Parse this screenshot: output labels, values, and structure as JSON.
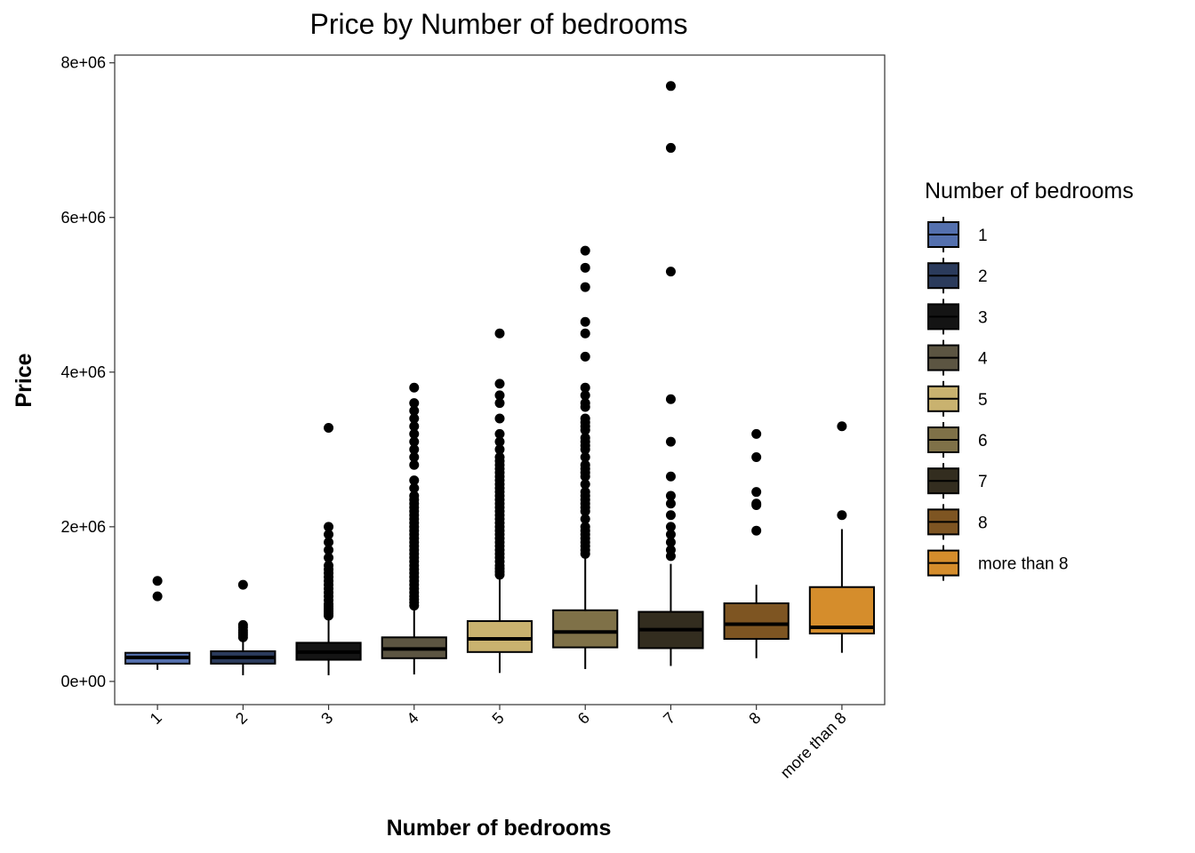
{
  "chart_data": {
    "type": "box",
    "title": "Price by Number of bedrooms",
    "xlabel": "Number of bedrooms",
    "ylabel": "Price",
    "ylim": [
      -300000,
      8100000
    ],
    "yticks": [
      0,
      2000000,
      4000000,
      6000000,
      8000000
    ],
    "ytick_labels": [
      "0e+00",
      "2e+06",
      "4e+06",
      "6e+06",
      "8e+06"
    ],
    "grid": false,
    "legend": {
      "title": "Number of bedrooms",
      "position": "right"
    },
    "categories": [
      "1",
      "2",
      "3",
      "4",
      "5",
      "6",
      "7",
      "8",
      "more than 8"
    ],
    "colors": [
      "#5470AE",
      "#2B3B5C",
      "#141414",
      "#5C5542",
      "#C9B26F",
      "#7F7148",
      "#332D1F",
      "#7E5522",
      "#D58D2C"
    ],
    "boxes": [
      {
        "min": 150000,
        "q1": 230000,
        "median": 310000,
        "q3": 370000,
        "max": 370000,
        "outliers": [
          1100000,
          1300000
        ]
      },
      {
        "min": 80000,
        "q1": 230000,
        "median": 310000,
        "q3": 390000,
        "max": 520000,
        "outliers": [
          570000,
          600000,
          630000,
          660000,
          700000,
          730000,
          1250000
        ]
      },
      {
        "min": 80000,
        "q1": 280000,
        "median": 380000,
        "q3": 500000,
        "max": 820000,
        "outliers": [
          850000,
          880000,
          910000,
          940000,
          970000,
          1000000,
          1050000,
          1100000,
          1150000,
          1200000,
          1250000,
          1300000,
          1350000,
          1400000,
          1450000,
          1500000,
          1600000,
          1700000,
          1800000,
          1900000,
          2000000,
          3280000
        ]
      },
      {
        "min": 90000,
        "q1": 300000,
        "median": 420000,
        "q3": 570000,
        "max": 950000,
        "outliers": [
          980000,
          1020000,
          1060000,
          1100000,
          1150000,
          1200000,
          1250000,
          1300000,
          1350000,
          1400000,
          1450000,
          1500000,
          1550000,
          1600000,
          1650000,
          1700000,
          1750000,
          1800000,
          1850000,
          1900000,
          1950000,
          2000000,
          2050000,
          2100000,
          2150000,
          2200000,
          2250000,
          2300000,
          2350000,
          2400000,
          2500000,
          2600000,
          2800000,
          2900000,
          3000000,
          3100000,
          3200000,
          3300000,
          3400000,
          3500000,
          3600000,
          3800000
        ]
      },
      {
        "min": 110000,
        "q1": 380000,
        "median": 550000,
        "q3": 780000,
        "max": 1350000,
        "outliers": [
          1380000,
          1420000,
          1460000,
          1500000,
          1550000,
          1600000,
          1650000,
          1700000,
          1750000,
          1800000,
          1850000,
          1900000,
          1950000,
          2000000,
          2050000,
          2100000,
          2150000,
          2200000,
          2250000,
          2300000,
          2350000,
          2400000,
          2450000,
          2500000,
          2550000,
          2600000,
          2650000,
          2700000,
          2750000,
          2800000,
          2850000,
          2900000,
          3000000,
          3100000,
          3200000,
          3400000,
          3600000,
          3700000,
          3850000,
          4500000
        ]
      },
      {
        "min": 160000,
        "q1": 440000,
        "median": 640000,
        "q3": 920000,
        "max": 1630000,
        "outliers": [
          1650000,
          1700000,
          1750000,
          1800000,
          1850000,
          1900000,
          1950000,
          2000000,
          2100000,
          2200000,
          2250000,
          2300000,
          2350000,
          2400000,
          2450000,
          2550000,
          2650000,
          2700000,
          2750000,
          2800000,
          2900000,
          3000000,
          3050000,
          3100000,
          3150000,
          3250000,
          3300000,
          3350000,
          3400000,
          3550000,
          3600000,
          3700000,
          3800000,
          4200000,
          4500000,
          4650000,
          5100000,
          5350000,
          5570000
        ]
      },
      {
        "min": 200000,
        "q1": 430000,
        "median": 670000,
        "q3": 900000,
        "max": 1520000,
        "outliers": [
          1620000,
          1700000,
          1800000,
          1900000,
          2000000,
          2150000,
          2300000,
          2400000,
          2650000,
          3100000,
          3650000,
          5300000,
          6900000,
          7700000
        ]
      },
      {
        "min": 300000,
        "q1": 550000,
        "median": 740000,
        "q3": 1010000,
        "max": 1250000,
        "outliers": [
          1950000,
          2280000,
          2300000,
          2450000,
          2900000,
          3200000
        ]
      },
      {
        "min": 370000,
        "q1": 620000,
        "median": 700000,
        "q3": 1220000,
        "max": 1970000,
        "outliers": [
          2150000,
          3300000
        ]
      }
    ]
  }
}
